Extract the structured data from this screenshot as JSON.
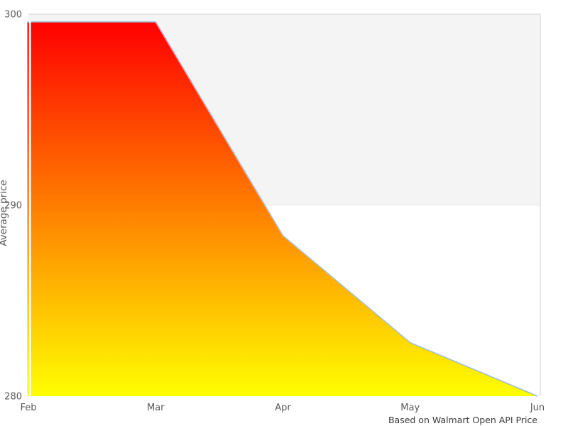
{
  "chart_data": {
    "type": "area",
    "title": "",
    "x": [
      "Feb",
      "Mar",
      "Apr",
      "May",
      "Jun"
    ],
    "series": [
      {
        "name": "Average price",
        "values": [
          299.6,
          299.6,
          288.4,
          282.8,
          280.0
        ]
      }
    ],
    "xlabel": "",
    "ylabel": "Average price",
    "ylim": [
      280,
      300
    ],
    "yticks": [
      280,
      290,
      300
    ],
    "caption": "Based on Walmart Open API Price",
    "legend": "none",
    "grid": "off",
    "plot_band": {
      "from": 290,
      "to": 300,
      "color": "#f4f4f4"
    },
    "colors": {
      "gradient_top": "#ff0000",
      "gradient_bottom": "#ffff00",
      "line": "#a5c0dd",
      "band_fill": "#f4f4f4",
      "band_edge": "#d9d9d9",
      "band_bottom_edge": "#ececec",
      "plot_border": "#d9d9d9",
      "tick_text": "#595959",
      "caption_text": "#3a3a3a",
      "background": "#ffffff"
    }
  }
}
